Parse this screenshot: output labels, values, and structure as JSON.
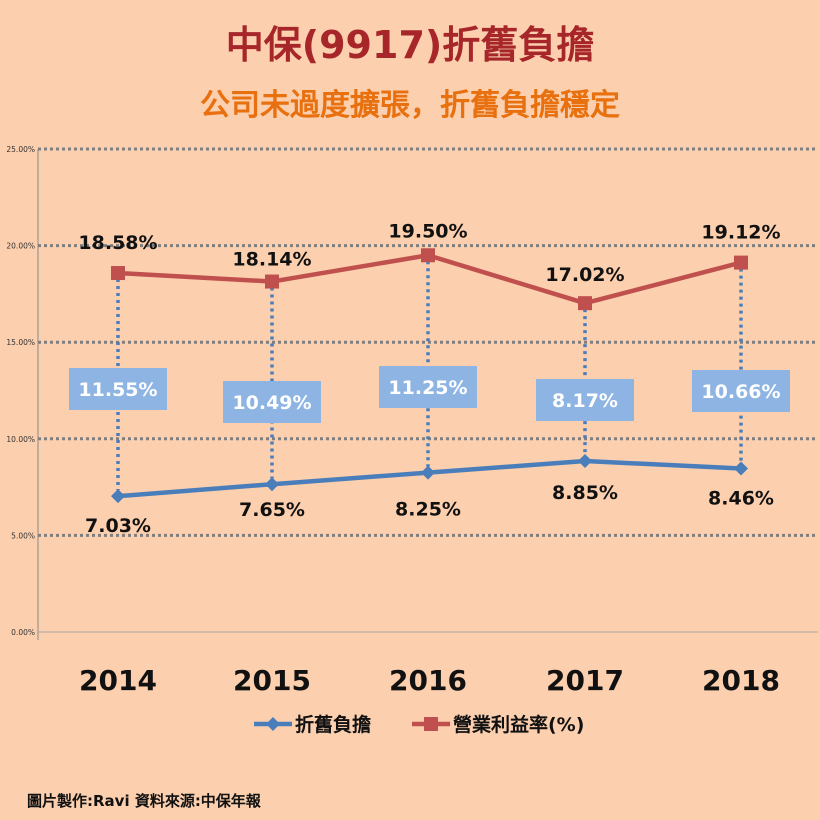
{
  "header": {
    "title": "中保(9917)折舊負擔",
    "subtitle": "公司未過度擴張，折舊負擔穩定"
  },
  "footer": {
    "credit": "圖片製作:Ravi  資料來源:中保年報"
  },
  "chart_data": {
    "type": "line",
    "categories": [
      "2014",
      "2015",
      "2016",
      "2017",
      "2018"
    ],
    "ylim": [
      0,
      25
    ],
    "yticks": [
      0,
      5,
      10,
      15,
      20,
      25
    ],
    "ytick_labels": [
      "0.00%",
      "5.00%",
      "10.00%",
      "15.00%",
      "20.00%",
      "25.00%"
    ],
    "grid": true,
    "legend_position": "bottom",
    "series": [
      {
        "name": "折舊負擔",
        "color": "#4a7ebb",
        "marker": "diamond",
        "values": [
          7.03,
          7.65,
          8.25,
          8.85,
          8.46
        ],
        "labels": [
          "7.03%",
          "7.65%",
          "8.25%",
          "8.85%",
          "8.46%"
        ]
      },
      {
        "name": "營業利益率(%)",
        "color": "#c0504d",
        "marker": "square",
        "values": [
          18.58,
          18.14,
          19.5,
          17.02,
          19.12
        ],
        "labels": [
          "18.58%",
          "18.14%",
          "19.50%",
          "17.02%",
          "19.12%"
        ]
      }
    ],
    "ratio_labels": [
      "11.55%",
      "10.49%",
      "11.25%",
      "8.17%",
      "10.66%"
    ],
    "ratio_box_color": "#8db4e2"
  }
}
